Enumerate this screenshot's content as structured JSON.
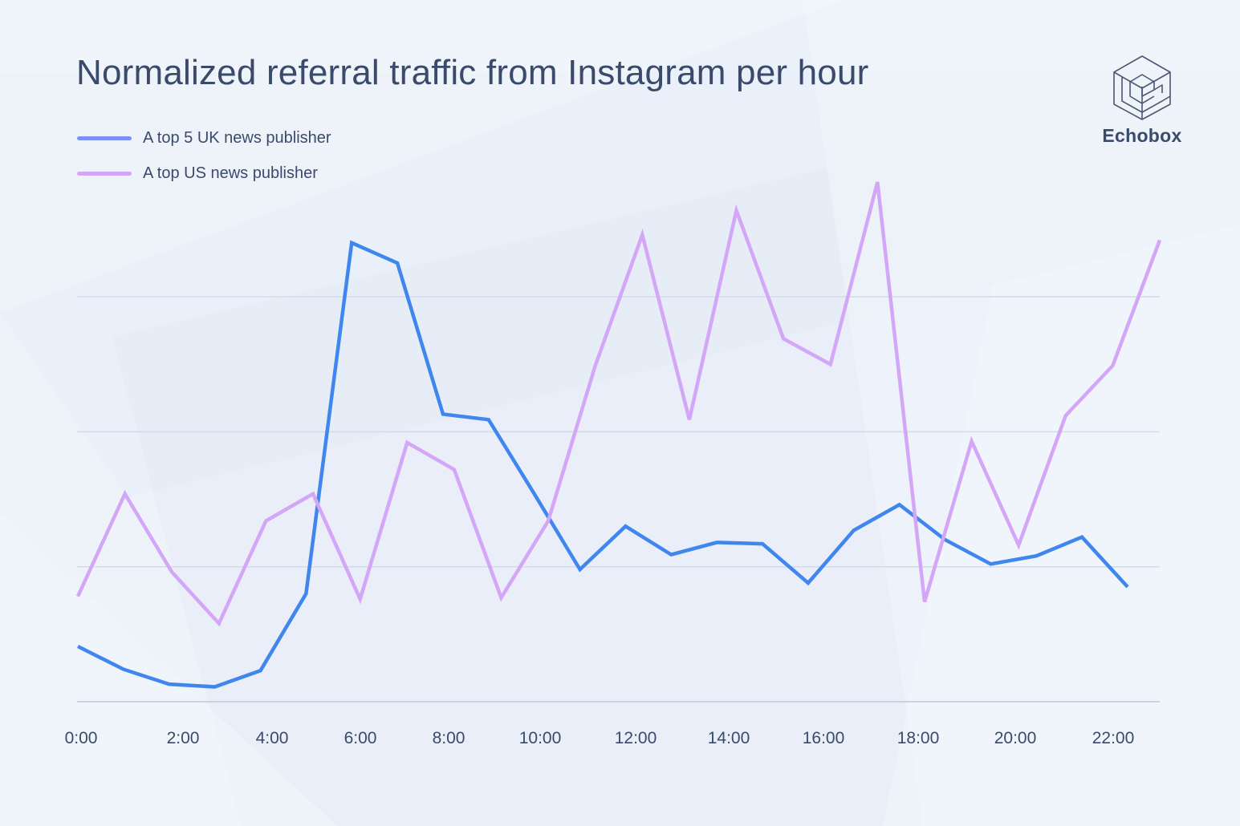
{
  "title": "Normalized referral traffic from Instagram per hour",
  "brand": {
    "name": "Echobox",
    "icon": "echobox-cube-logo-icon"
  },
  "legend": [
    {
      "label": "A top 5 UK news publisher",
      "color": "#7b8ff5"
    },
    {
      "label": "A top US news publisher",
      "color": "#d4a6f7"
    }
  ],
  "colors": {
    "background": "#eef3fa",
    "text": "#3a4a6b",
    "grid": "#d3dbe7"
  },
  "chart_data": {
    "type": "line",
    "title": "Normalized referral traffic from Instagram per hour",
    "xlabel": "",
    "ylabel": "",
    "x": [
      "0:00",
      "1:00",
      "2:00",
      "3:00",
      "4:00",
      "5:00",
      "6:00",
      "7:00",
      "8:00",
      "9:00",
      "10:00",
      "11:00",
      "12:00",
      "13:00",
      "14:00",
      "15:00",
      "16:00",
      "17:00",
      "18:00",
      "19:00",
      "20:00",
      "21:00",
      "22:00",
      "23:00"
    ],
    "xticks": [
      "0:00",
      "2:00",
      "4:00",
      "6:00",
      "8:00",
      "10:00",
      "12:00",
      "14:00",
      "16:00",
      "18:00",
      "20:00",
      "22:00"
    ],
    "ylim": [
      0,
      3
    ],
    "yticks_labeled": false,
    "grid": true,
    "legend_position": "top-left",
    "series": [
      {
        "name": "A top 5 UK news publisher",
        "color": "#3f86ee",
        "values": [
          0.41,
          0.24,
          0.13,
          0.11,
          0.23,
          0.8,
          3.4,
          3.25,
          2.13,
          2.09,
          1.54,
          0.98,
          1.3,
          1.09,
          1.18,
          1.17,
          0.88,
          1.27,
          1.46,
          1.2,
          1.02,
          1.08,
          1.22,
          0.85
        ]
      },
      {
        "name": "A top US news publisher",
        "color": "#d4a6f7",
        "values": [
          0.78,
          1.54,
          0.96,
          0.58,
          1.34,
          1.54,
          0.76,
          1.92,
          1.72,
          0.77,
          1.34,
          2.49,
          3.46,
          2.09,
          3.64,
          2.69,
          2.5,
          3.85,
          0.74,
          1.93,
          1.16,
          2.12,
          2.49,
          3.42
        ]
      }
    ]
  }
}
